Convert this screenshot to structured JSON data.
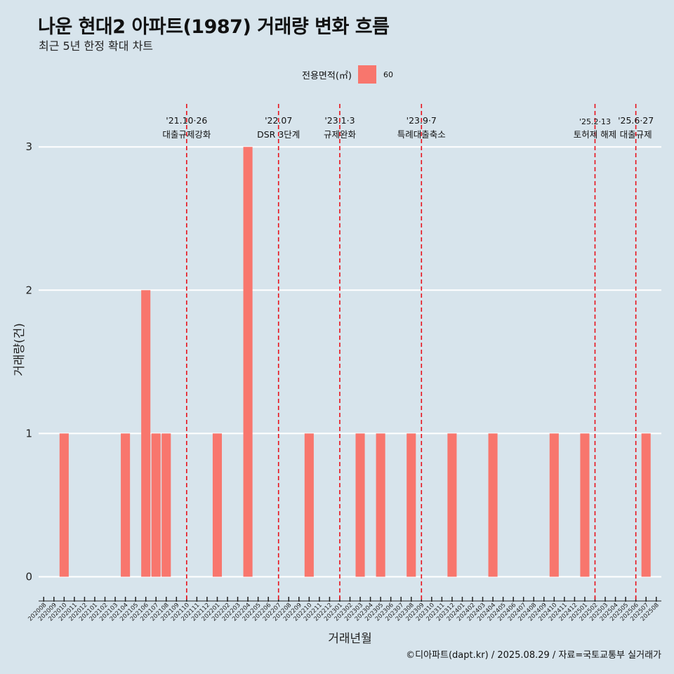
{
  "title": "나운 현대2 아파트(1987) 거래량 변화 흐름",
  "subtitle": "최근 5년 한정 확대 차트",
  "legend": {
    "title": "전용면적(㎡)",
    "entry": "60",
    "color": "#f8766d"
  },
  "caption": "©디아파트(dapt.kr) / 2025.08.29 / 자료=국토교통부 실거래가",
  "chart_data": {
    "type": "bar",
    "xlabel": "거래년월",
    "ylabel": "거래량(건)",
    "ylim": [
      -0.13,
      3.3
    ],
    "yticks": [
      0,
      1,
      2,
      3
    ],
    "grid": "horizontal",
    "legend_position": "top",
    "categories": [
      "202008",
      "202009",
      "202010",
      "202011",
      "202012",
      "202101",
      "202102",
      "202103",
      "202104",
      "202105",
      "202106",
      "202107",
      "202108",
      "202109",
      "202110",
      "202111",
      "202112",
      "202201",
      "202202",
      "202203",
      "202204",
      "202205",
      "202206",
      "202207",
      "202208",
      "202209",
      "202210",
      "202211",
      "202212",
      "202301",
      "202302",
      "202303",
      "202304",
      "202305",
      "202306",
      "202307",
      "202308",
      "202309",
      "202310",
      "202311",
      "202312",
      "202401",
      "202402",
      "202403",
      "202404",
      "202405",
      "202406",
      "202407",
      "202408",
      "202409",
      "202410",
      "202411",
      "202412",
      "202501",
      "202502",
      "202503",
      "202504",
      "202505",
      "202506",
      "202507",
      "202508"
    ],
    "series": [
      {
        "name": "60",
        "values": [
          0,
          0,
          1,
          0,
          0,
          0,
          0,
          0,
          1,
          0,
          2,
          1,
          1,
          0,
          0,
          0,
          0,
          1,
          0,
          0,
          3,
          0,
          0,
          0,
          0,
          0,
          1,
          0,
          0,
          0,
          0,
          1,
          0,
          1,
          0,
          0,
          1,
          0,
          0,
          0,
          1,
          0,
          0,
          0,
          1,
          0,
          0,
          0,
          0,
          0,
          1,
          0,
          0,
          1,
          0,
          0,
          0,
          0,
          0,
          1,
          0
        ]
      }
    ],
    "annotations": [
      {
        "label1": "'21.10·26",
        "label2": "대출규제강화",
        "at": "202110"
      },
      {
        "label1": "'22.07",
        "label2": "DSR 3단계",
        "at": "202207"
      },
      {
        "label1": "'23.1·3",
        "label2": "규제완화",
        "at": "202301"
      },
      {
        "label1": "'23.9·7",
        "label2": "특례대출축소",
        "at": "202309"
      },
      {
        "label1": "'25.2·13",
        "label2": "토허제 해제",
        "at": "202502"
      },
      {
        "label1": "'25.6·27",
        "label2": "대출규제",
        "at": "202506"
      }
    ]
  }
}
